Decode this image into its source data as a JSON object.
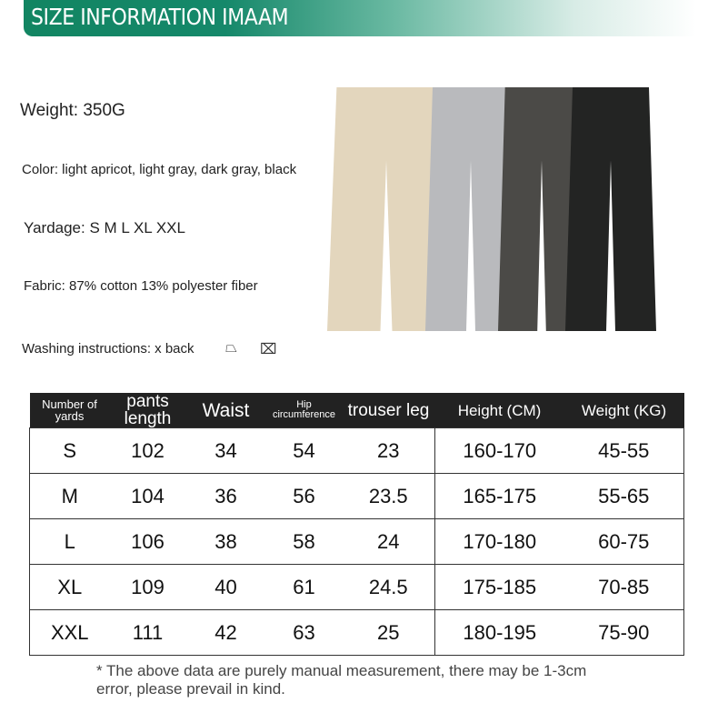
{
  "banner": {
    "title": "SIZE INFORMATION IMAAM",
    "color": "#128562"
  },
  "info": {
    "weight": "Weight: 350G",
    "color": "Color: light apricot, light gray, dark gray, black",
    "yardage": "Yardage: S M L XL XXL",
    "fabric": "Fabric: 87% cotton 13% polyester fiber",
    "washing": "Washing instructions: x back"
  },
  "product_colors": [
    "#e3d6bd",
    "#b9babd",
    "#4b4a47",
    "#232423"
  ],
  "table": {
    "headers": [
      "Number of yards",
      "pants length",
      "Waist",
      "Hip circumference",
      "trouser leg",
      "Height (CM)",
      "Weight (KG)"
    ],
    "rows": [
      [
        "S",
        "102",
        "34",
        "54",
        "23",
        "160-170",
        "45-55"
      ],
      [
        "M",
        "104",
        "36",
        "56",
        "23.5",
        "165-175",
        "55-65"
      ],
      [
        "L",
        "106",
        "38",
        "58",
        "24",
        "170-180",
        "60-75"
      ],
      [
        "XL",
        "109",
        "40",
        "61",
        "24.5",
        "175-185",
        "70-85"
      ],
      [
        "XXL",
        "111",
        "42",
        "63",
        "25",
        "180-195",
        "75-90"
      ]
    ]
  },
  "note": "* The above data are purely manual measurement, there may be 1-3cm error, please prevail in kind."
}
